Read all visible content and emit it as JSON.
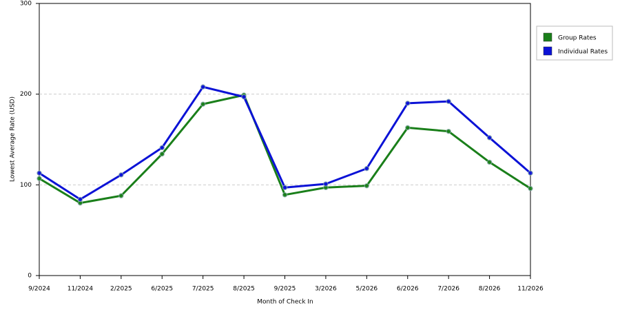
{
  "chart_data": {
    "type": "line",
    "x_label": "Month of Check In",
    "y_label": "Lowest Average Rate (USD)",
    "categories": [
      "9/2024",
      "11/2024",
      "2/2025",
      "6/2025",
      "7/2025",
      "8/2025",
      "9/2025",
      "3/2026",
      "5/2026",
      "6/2026",
      "7/2026",
      "8/2026",
      "11/2026"
    ],
    "series": [
      {
        "name": "Group Rates",
        "color": "#1a7f1a",
        "values": [
          107,
          80,
          88,
          134,
          189,
          199,
          89,
          97,
          99,
          163,
          159,
          125,
          96
        ]
      },
      {
        "name": "Individual Rates",
        "color": "#0b12d6",
        "values": [
          113,
          84,
          111,
          141,
          208,
          197,
          97,
          101,
          118,
          190,
          192,
          152,
          113
        ]
      }
    ],
    "ylim": [
      0,
      300
    ],
    "yticks": [
      0,
      100,
      200,
      300
    ],
    "grid": true,
    "legend": "right"
  }
}
